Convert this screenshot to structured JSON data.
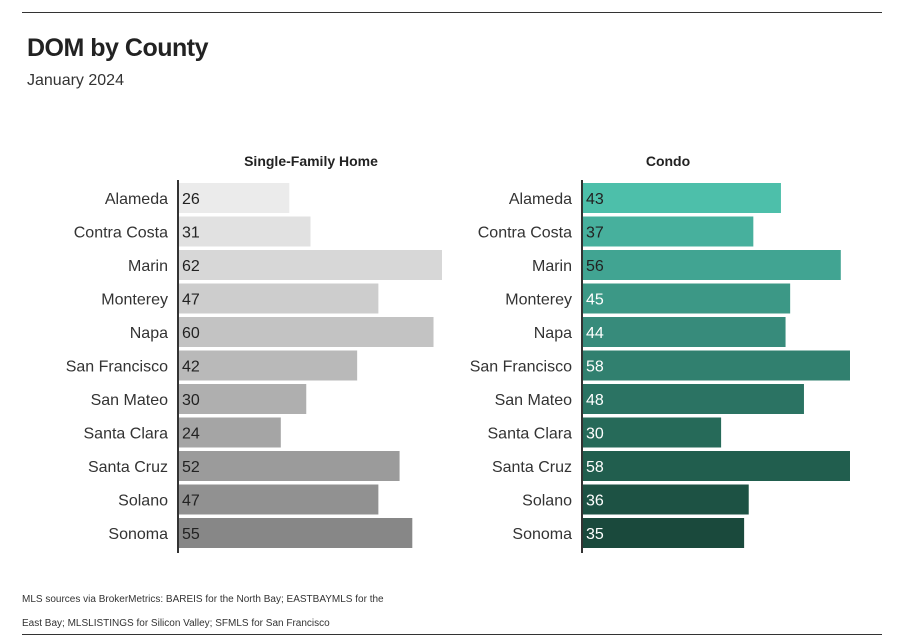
{
  "header": {
    "title": "DOM by County",
    "subtitle": "January 2024"
  },
  "footnote": "MLS sources via BrokerMetrics: BAREIS for the North Bay; EASTBAYMLS for the East Bay; MLSLISTINGS for Silicon Valley; SFMLS for San Francisco",
  "chart_data": [
    {
      "type": "bar",
      "orientation": "horizontal",
      "title": "Single-Family Home",
      "categories": [
        "Alameda",
        "Contra Costa",
        "Marin",
        "Monterey",
        "Napa",
        "San Francisco",
        "San Mateo",
        "Santa Clara",
        "Santa Cruz",
        "Solano",
        "Sonoma"
      ],
      "values": [
        26,
        31,
        62,
        47,
        60,
        42,
        30,
        24,
        52,
        47,
        55
      ],
      "colors": [
        "#ebebeb",
        "#e1e1e1",
        "#d7d7d7",
        "#cdcdcd",
        "#c3c3c3",
        "#b9b9b9",
        "#afafaf",
        "#a5a5a5",
        "#9b9b9b",
        "#919191",
        "#878787"
      ],
      "xlim": [
        0,
        62
      ],
      "grid": false
    },
    {
      "type": "bar",
      "orientation": "horizontal",
      "title": "Condo",
      "categories": [
        "Alameda",
        "Contra Costa",
        "Marin",
        "Monterey",
        "Napa",
        "San Francisco",
        "San Mateo",
        "Santa Clara",
        "Santa Cruz",
        "Solano",
        "Sonoma"
      ],
      "values": [
        43,
        37,
        56,
        45,
        44,
        58,
        48,
        30,
        58,
        36,
        35
      ],
      "colors": [
        "#4dbfaa",
        "#47b09d",
        "#41a492",
        "#3c9886",
        "#378b7b",
        "#31806f",
        "#2b7363",
        "#266a59",
        "#215e4e",
        "#1d5244",
        "#1a493c"
      ],
      "xlim": [
        0,
        58
      ],
      "grid": false
    }
  ]
}
